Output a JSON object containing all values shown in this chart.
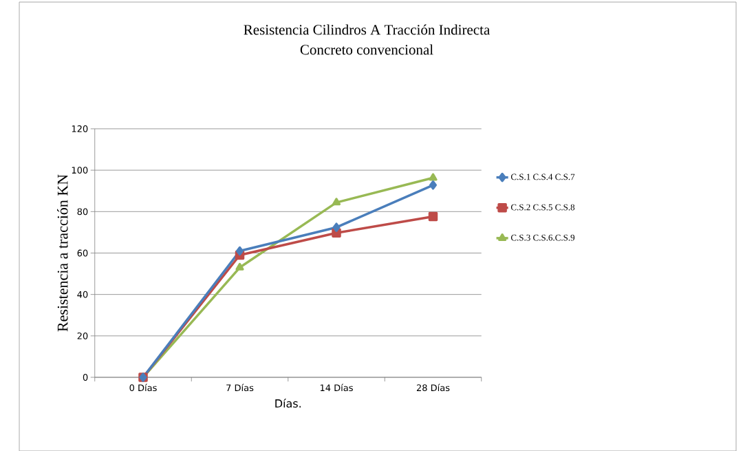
{
  "chart_data": {
    "type": "line",
    "title": "Resistencia Cilindros A Tracción Indirecta",
    "subtitle": "Concreto convencional",
    "xlabel": "Días.",
    "ylabel": "Resistencia a tracción KN",
    "categories": [
      "0 Días",
      "7 Días",
      "14 Días",
      "28 Días"
    ],
    "series": [
      {
        "name": "C.S.1  C.S.4  C.S.7",
        "color": "#4a7ebb",
        "marker": "diamond",
        "values": [
          0,
          61,
          72.4,
          92.8
        ]
      },
      {
        "name": "C.S.2  C.S.5  C.S.8",
        "color": "#be4b48",
        "marker": "square",
        "values": [
          0,
          59,
          69.7,
          77.6
        ]
      },
      {
        "name": "C.S.3  C.S.6.C.S.9",
        "color": "#98b954",
        "marker": "triangle",
        "values": [
          0,
          53,
          84.4,
          96.3
        ]
      }
    ],
    "ylim": [
      0,
      120
    ],
    "yticks": [
      0,
      20,
      40,
      60,
      80,
      100,
      120
    ],
    "grid": "y",
    "legend": "right",
    "line_style": "solid"
  }
}
